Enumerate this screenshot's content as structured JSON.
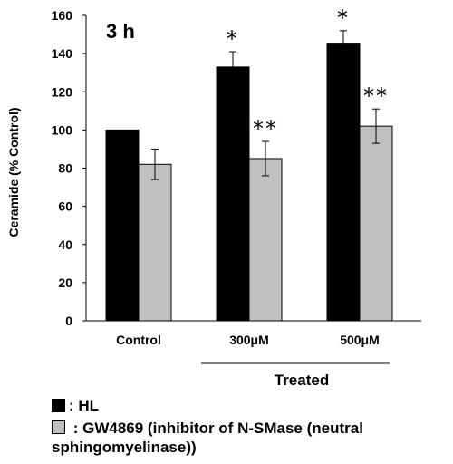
{
  "chart_data": {
    "type": "bar",
    "annotation": "3 h",
    "ylabel": "Ceramide (% Control)",
    "ylim": [
      0,
      160
    ],
    "yticks": [
      0,
      20,
      40,
      60,
      80,
      100,
      120,
      140,
      160
    ],
    "categories": [
      "Control",
      "300μM",
      "500μM"
    ],
    "group_label": "Treated",
    "series": [
      {
        "name": "HL",
        "color": "#000000",
        "values": [
          100,
          133,
          145
        ],
        "errors": [
          0,
          8,
          7
        ],
        "significance": [
          "",
          "*",
          "*"
        ]
      },
      {
        "name": "GW4869 (inhibitor of N-SMase (neutral sphingomyelinase))",
        "color": "#c0c0c0",
        "values": [
          82,
          85,
          102
        ],
        "errors": [
          8,
          9,
          9
        ],
        "significance": [
          "",
          "**",
          "**"
        ]
      }
    ],
    "legend": [
      {
        "marker": "■",
        "text": ": HL",
        "color": "#000000"
      },
      {
        "marker": "■",
        "text": ": GW4869 (inhibitor of N-SMase (neutral sphingomyelinase))",
        "color": "#c0c0c0"
      }
    ]
  }
}
